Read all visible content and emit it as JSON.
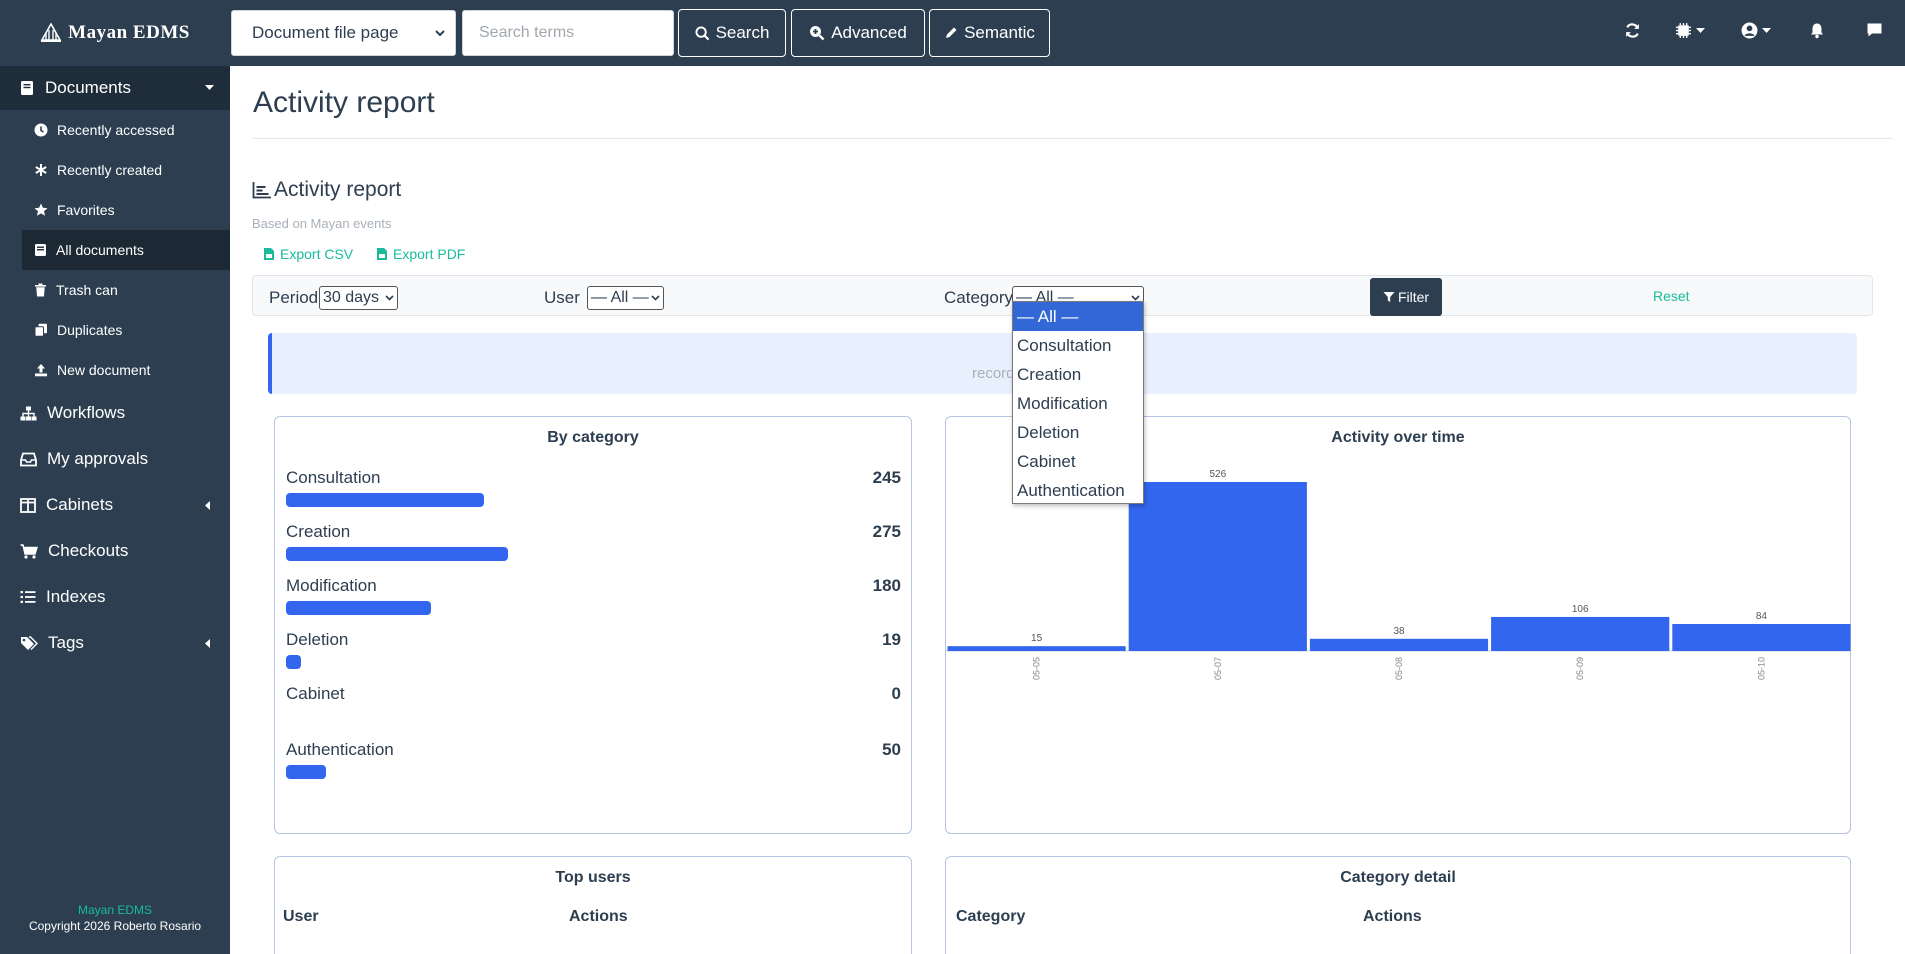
{
  "brand": {
    "name": "Mayan EDMS"
  },
  "topbar": {
    "search_model": "Document file page",
    "search_placeholder": "Search terms",
    "search_label": "Search",
    "advanced_label": "Advanced",
    "semantic_label": "Semantic"
  },
  "sidebar": {
    "documents_label": "Documents",
    "doc_items": [
      {
        "label": "Recently accessed",
        "icon": "clock-icon"
      },
      {
        "label": "Recently created",
        "icon": "asterisk-icon"
      },
      {
        "label": "Favorites",
        "icon": "star-icon"
      },
      {
        "label": "All documents",
        "icon": "book-icon"
      },
      {
        "label": "Trash can",
        "icon": "trash-icon"
      },
      {
        "label": "Duplicates",
        "icon": "copy-icon"
      },
      {
        "label": "New document",
        "icon": "upload-icon"
      }
    ],
    "main_items": [
      {
        "label": "Workflows",
        "icon": "sitemap-icon"
      },
      {
        "label": "My approvals",
        "icon": "inbox-icon"
      },
      {
        "label": "Cabinets",
        "icon": "columns-icon"
      },
      {
        "label": "Checkouts",
        "icon": "cart-icon"
      },
      {
        "label": "Indexes",
        "icon": "list-icon"
      },
      {
        "label": "Tags",
        "icon": "tags-icon"
      }
    ],
    "footer_line1": "Mayan EDMS",
    "footer_line2": "Copyright 2026 Roberto Rosario"
  },
  "page": {
    "title": "Activity report",
    "section_title": "Activity report",
    "section_subtitle": "Based on Mayan events",
    "export_csv": "Export CSV",
    "export_pdf": "Export PDF"
  },
  "filters": {
    "period_label": "Period",
    "period_value": "30 days",
    "user_label": "User",
    "user_value": "— All —",
    "category_label": "Category",
    "category_value": "— All —",
    "filter_button": "Filter",
    "reset_link": "Reset"
  },
  "category_dropdown": {
    "options": [
      "— All —",
      "Consultation",
      "Creation",
      "Modification",
      "Deletion",
      "Cabinet",
      "Authentication"
    ],
    "selected": "— All —"
  },
  "alert": {
    "visible_text": "record               ays"
  },
  "by_category": {
    "title": "By category",
    "max": 275,
    "rows": [
      {
        "name": "Consultation",
        "value": 245
      },
      {
        "name": "Creation",
        "value": 275
      },
      {
        "name": "Modification",
        "value": 180
      },
      {
        "name": "Deletion",
        "value": 19
      },
      {
        "name": "Cabinet",
        "value": 0
      },
      {
        "name": "Authentication",
        "value": 50
      }
    ]
  },
  "chart_data": {
    "type": "bar",
    "title": "Activity over time",
    "categories": [
      "05-05",
      "05-07",
      "05-08",
      "05-09",
      "05-10"
    ],
    "values": [
      15,
      526,
      38,
      106,
      84
    ],
    "ylim": [
      0,
      526
    ],
    "xlabel": "",
    "ylabel": "",
    "color": "#3366ee"
  },
  "top_users": {
    "title": "Top users",
    "columns": [
      "User",
      "Actions"
    ]
  },
  "category_detail": {
    "title": "Category detail",
    "columns": [
      "Category",
      "Actions"
    ]
  },
  "colors": {
    "navy": "#2c3e50",
    "accent": "#3366ee",
    "teal": "#18bc9c"
  }
}
